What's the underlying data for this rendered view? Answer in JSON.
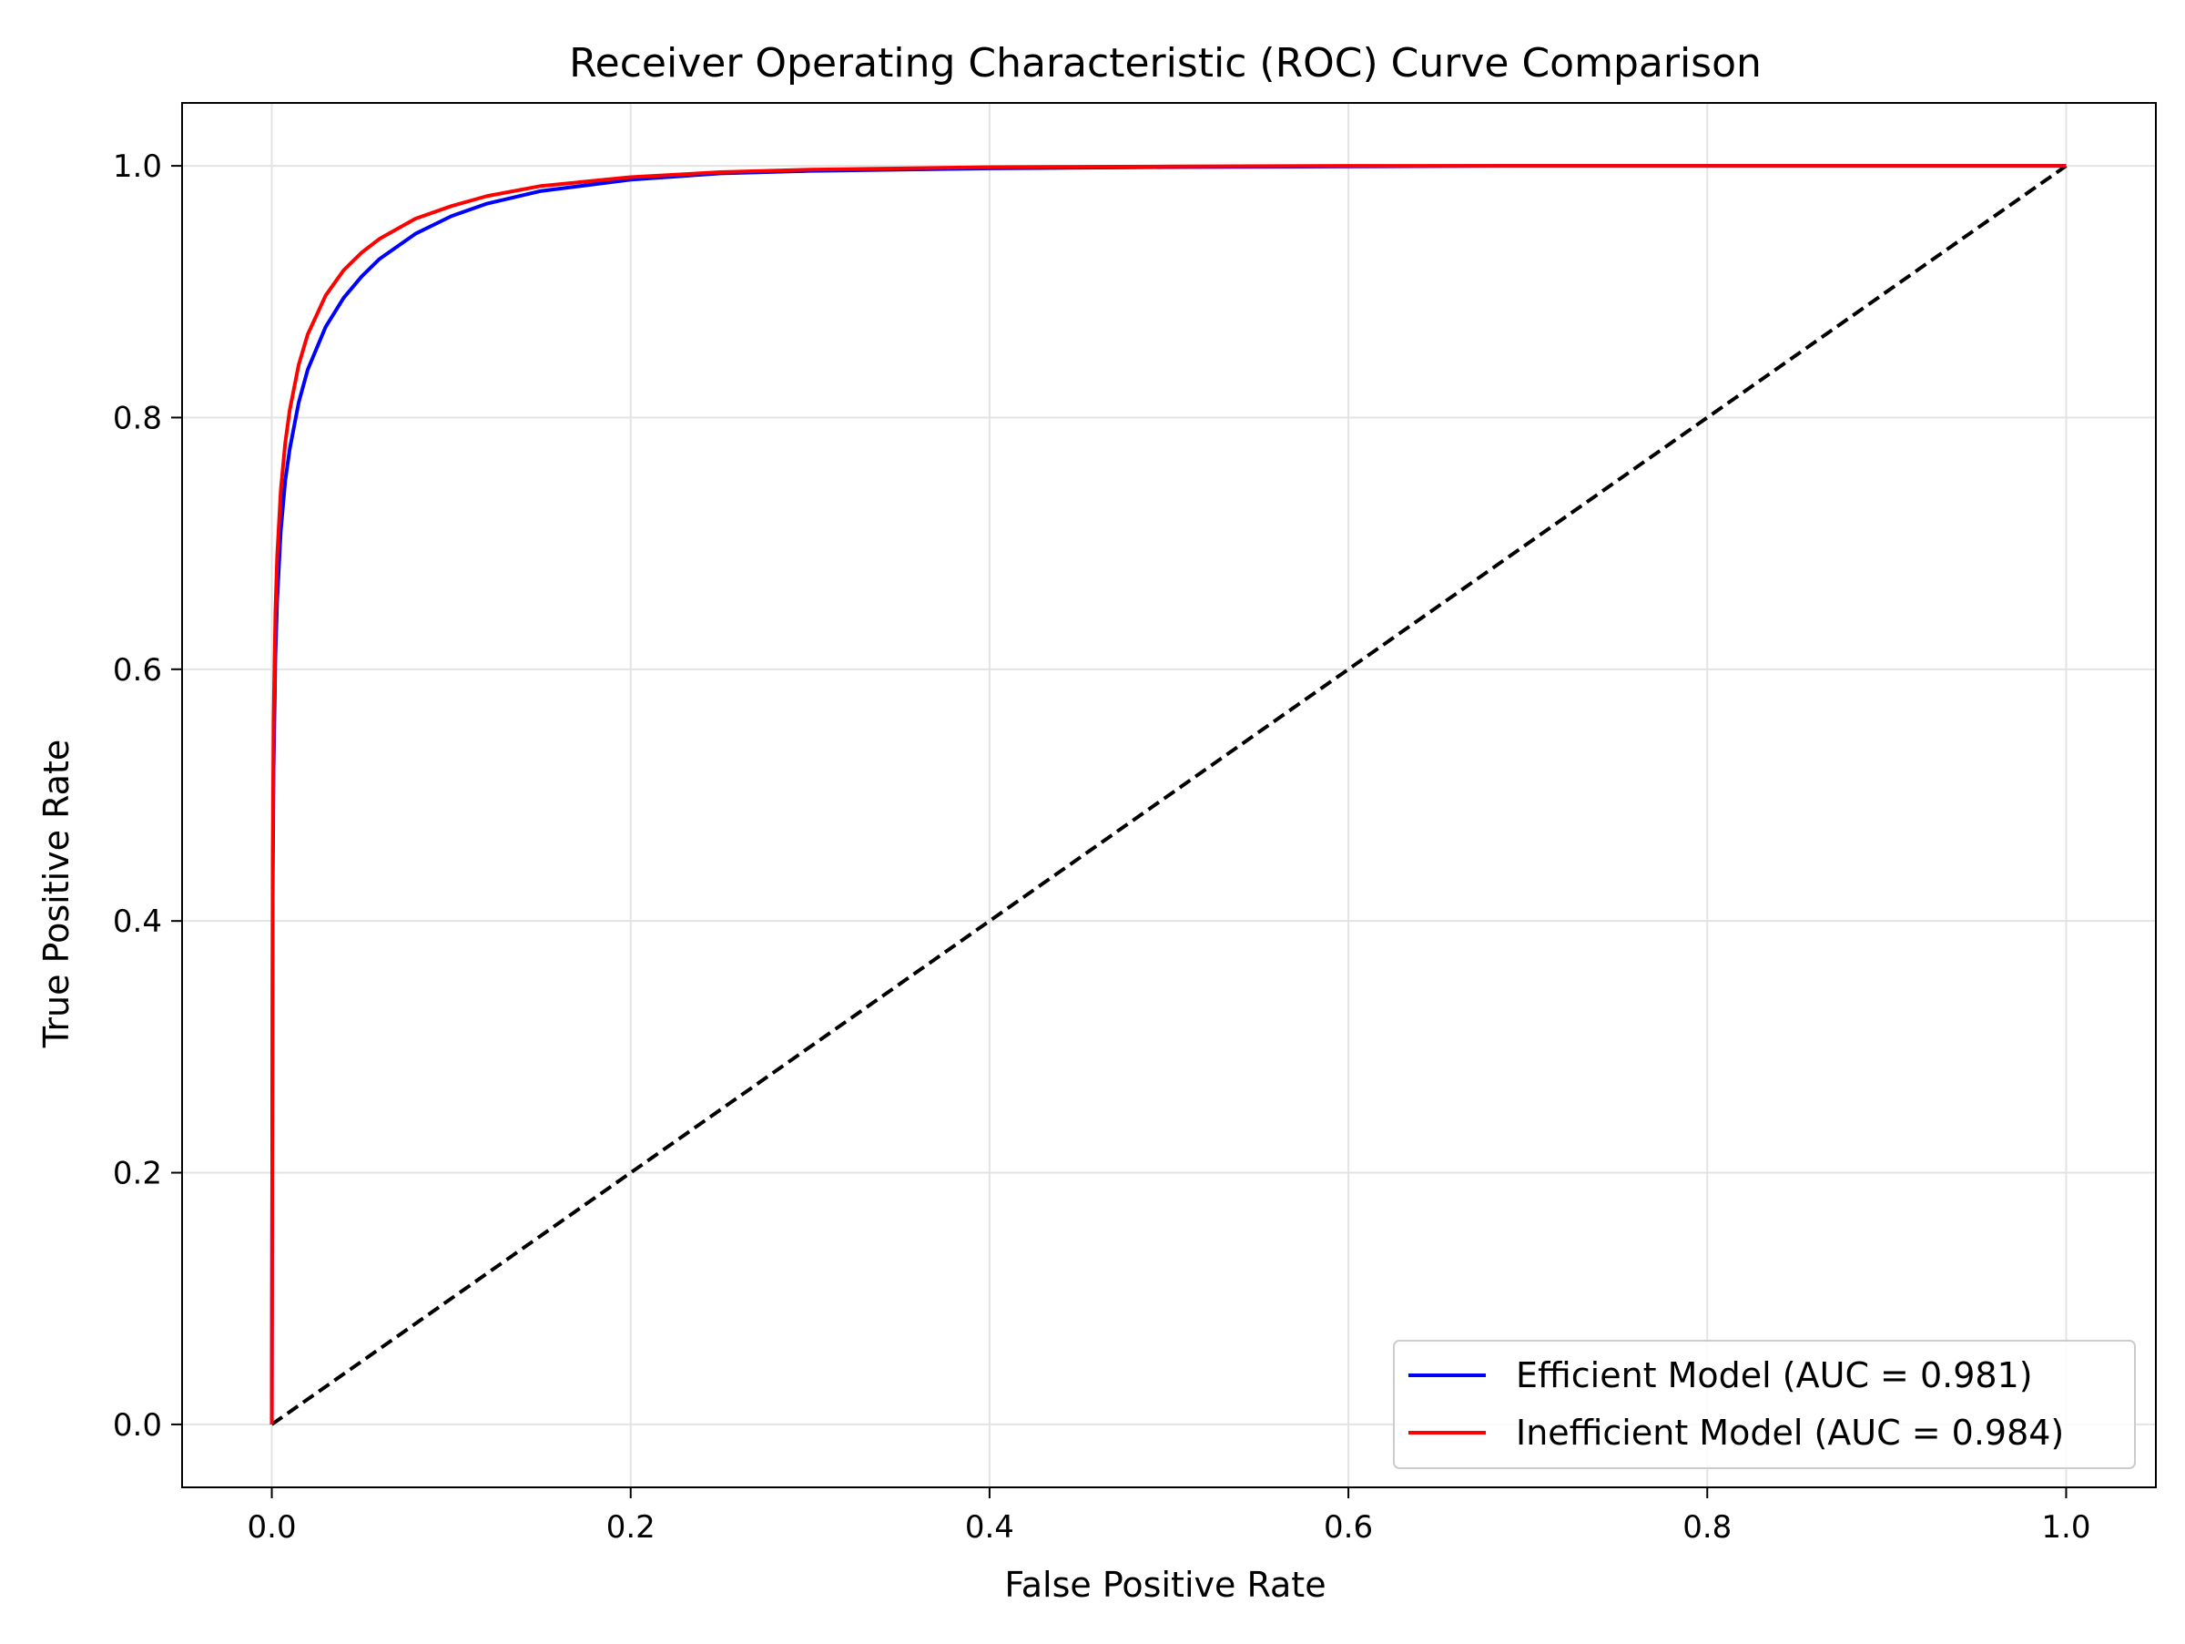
{
  "chart_data": {
    "type": "line",
    "title": "Receiver Operating Characteristic (ROC) Curve Comparison",
    "xlabel": "False Positive Rate",
    "ylabel": "True Positive Rate",
    "xlim": [
      -0.05,
      1.05
    ],
    "ylim": [
      -0.05,
      1.05
    ],
    "xticks": [
      0.0,
      0.2,
      0.4,
      0.6,
      0.8,
      1.0
    ],
    "yticks": [
      0.0,
      0.2,
      0.4,
      0.6,
      0.8,
      1.0
    ],
    "xtick_labels": [
      "0.0",
      "0.2",
      "0.4",
      "0.6",
      "0.8",
      "1.0"
    ],
    "ytick_labels": [
      "0.0",
      "0.2",
      "0.4",
      "0.6",
      "0.8",
      "1.0"
    ],
    "grid": true,
    "legend_position": "lower-right",
    "series": [
      {
        "name": "Efficient Model (AUC = 0.981)",
        "color": "#0000ff",
        "x": [
          0.0,
          0.0005,
          0.001,
          0.002,
          0.003,
          0.005,
          0.0075,
          0.01,
          0.015,
          0.02,
          0.03,
          0.04,
          0.05,
          0.06,
          0.08,
          0.1,
          0.12,
          0.15,
          0.2,
          0.25,
          0.3,
          0.4,
          0.5,
          0.6,
          0.7,
          0.8,
          0.9,
          1.0
        ],
        "y": [
          0.0,
          0.42,
          0.52,
          0.61,
          0.655,
          0.71,
          0.75,
          0.775,
          0.812,
          0.838,
          0.872,
          0.895,
          0.912,
          0.926,
          0.946,
          0.96,
          0.97,
          0.98,
          0.989,
          0.994,
          0.996,
          0.998,
          0.999,
          0.9995,
          1.0,
          1.0,
          1.0,
          1.0
        ]
      },
      {
        "name": "Inefficient Model (AUC = 0.984)",
        "color": "#ff0000",
        "x": [
          0.0,
          0.0005,
          0.001,
          0.002,
          0.003,
          0.005,
          0.0075,
          0.01,
          0.015,
          0.02,
          0.03,
          0.04,
          0.05,
          0.06,
          0.08,
          0.1,
          0.12,
          0.15,
          0.2,
          0.25,
          0.3,
          0.4,
          0.5,
          0.6,
          0.7,
          0.8,
          0.9,
          1.0
        ],
        "y": [
          0.0,
          0.45,
          0.56,
          0.645,
          0.69,
          0.742,
          0.78,
          0.806,
          0.842,
          0.866,
          0.897,
          0.917,
          0.931,
          0.942,
          0.958,
          0.968,
          0.976,
          0.984,
          0.991,
          0.995,
          0.997,
          0.999,
          0.9995,
          1.0,
          1.0,
          1.0,
          1.0,
          1.0
        ]
      },
      {
        "name": "",
        "color": "#000000",
        "dashed": true,
        "x": [
          0.0,
          1.0
        ],
        "y": [
          0.0,
          1.0
        ]
      }
    ]
  }
}
